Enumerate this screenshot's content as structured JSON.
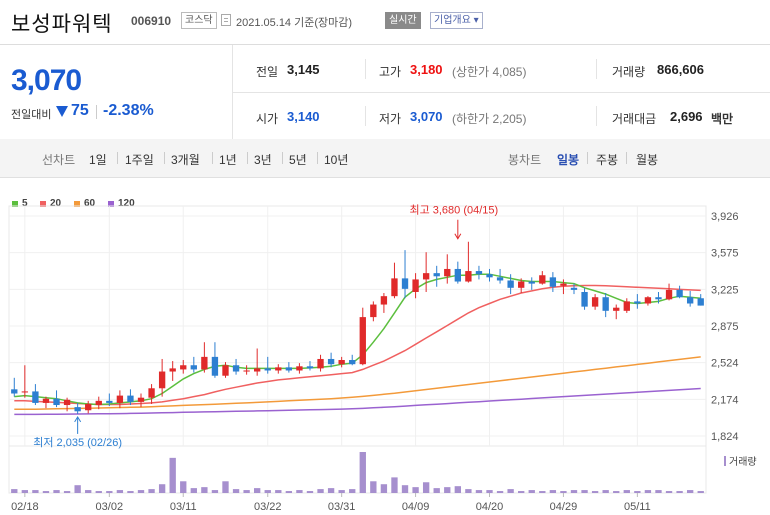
{
  "header": {
    "company_name": "보성파워텍",
    "code": "006910",
    "market_badge": "코스닥",
    "date_text": "2021.05.14 기준(장마감)",
    "realtime_label": "실시간",
    "company_info_label": "기업개요 ▾"
  },
  "price": {
    "current": "3,070",
    "change_label": "전일대비",
    "change_value": "75",
    "change_pct": "-2.38%"
  },
  "summary": {
    "prev_close_label": "전일",
    "prev_close": "3,145",
    "high_label": "고가",
    "high": "3,180",
    "upper_limit": "(상한가 4,085)",
    "volume_label": "거래량",
    "volume": "866,606",
    "open_label": "시가",
    "open": "3,140",
    "low_label": "저가",
    "low": "3,070",
    "lower_limit": "(하한가 2,205)",
    "trade_value_label": "거래대금",
    "trade_value": "2,696",
    "trade_value_unit": "백만"
  },
  "periods": {
    "line_chart_label": "선차트",
    "items": [
      "1일",
      "1주일",
      "3개월",
      "1년",
      "3년",
      "5년",
      "10년"
    ],
    "candle_label": "봉차트",
    "candle_items": [
      "일봉",
      "주봉",
      "월봉"
    ],
    "candle_selected": "일봉"
  },
  "colors": {
    "up": "#e02a2a",
    "down": "#2d7fd1",
    "ma5": "#5cbf3e",
    "ma20": "#f06060",
    "ma60": "#f39a3a",
    "ma120": "#9a62d0"
  },
  "chart_data": {
    "type": "candlestick",
    "legend": [
      {
        "label": "5",
        "color": "#5cbf3e"
      },
      {
        "label": "20",
        "color": "#f06060"
      },
      {
        "label": "60",
        "color": "#f39a3a"
      },
      {
        "label": "120",
        "color": "#9a62d0"
      }
    ],
    "y_ticks": [
      "3,926",
      "3,575",
      "3,225",
      "2,875",
      "2,524",
      "2,174",
      "1,824"
    ],
    "ylim": [
      1824,
      3926
    ],
    "x_ticks": [
      "02/18",
      "03/02",
      "03/11",
      "03/22",
      "03/31",
      "04/09",
      "04/20",
      "04/29",
      "05/11"
    ],
    "x_tick_index": [
      1,
      9,
      16,
      24,
      31,
      38,
      45,
      52,
      59
    ],
    "annotations": {
      "high": {
        "text": "최고 3,680 (04/15)",
        "index": 42,
        "value": 3680
      },
      "low": {
        "text": "최저 2,035 (02/26)",
        "index": 6,
        "value": 2035
      }
    },
    "volume_label": "거래량",
    "candles": [
      {
        "o": 2270,
        "h": 2380,
        "l": 2200,
        "c": 2230
      },
      {
        "o": 2240,
        "h": 2500,
        "l": 2190,
        "c": 2250
      },
      {
        "o": 2250,
        "h": 2320,
        "l": 2120,
        "c": 2140
      },
      {
        "o": 2140,
        "h": 2200,
        "l": 2090,
        "c": 2180
      },
      {
        "o": 2180,
        "h": 2260,
        "l": 2100,
        "c": 2120
      },
      {
        "o": 2120,
        "h": 2190,
        "l": 2060,
        "c": 2170
      },
      {
        "o": 2100,
        "h": 2140,
        "l": 2035,
        "c": 2060
      },
      {
        "o": 2070,
        "h": 2160,
        "l": 2040,
        "c": 2130
      },
      {
        "o": 2120,
        "h": 2200,
        "l": 2080,
        "c": 2160
      },
      {
        "o": 2160,
        "h": 2230,
        "l": 2110,
        "c": 2140
      },
      {
        "o": 2140,
        "h": 2260,
        "l": 2090,
        "c": 2210
      },
      {
        "o": 2210,
        "h": 2270,
        "l": 2120,
        "c": 2150
      },
      {
        "o": 2150,
        "h": 2230,
        "l": 2100,
        "c": 2190
      },
      {
        "o": 2190,
        "h": 2320,
        "l": 2130,
        "c": 2280
      },
      {
        "o": 2280,
        "h": 2560,
        "l": 2200,
        "c": 2440
      },
      {
        "o": 2440,
        "h": 2540,
        "l": 2350,
        "c": 2470
      },
      {
        "o": 2460,
        "h": 2550,
        "l": 2420,
        "c": 2500
      },
      {
        "o": 2500,
        "h": 2580,
        "l": 2430,
        "c": 2460
      },
      {
        "o": 2460,
        "h": 2720,
        "l": 2430,
        "c": 2580
      },
      {
        "o": 2580,
        "h": 2720,
        "l": 2380,
        "c": 2400
      },
      {
        "o": 2400,
        "h": 2530,
        "l": 2380,
        "c": 2500
      },
      {
        "o": 2500,
        "h": 2560,
        "l": 2410,
        "c": 2440
      },
      {
        "o": 2440,
        "h": 2500,
        "l": 2410,
        "c": 2450
      },
      {
        "o": 2440,
        "h": 2660,
        "l": 2400,
        "c": 2470
      },
      {
        "o": 2470,
        "h": 2580,
        "l": 2420,
        "c": 2450
      },
      {
        "o": 2450,
        "h": 2510,
        "l": 2420,
        "c": 2480
      },
      {
        "o": 2480,
        "h": 2530,
        "l": 2430,
        "c": 2450
      },
      {
        "o": 2450,
        "h": 2520,
        "l": 2420,
        "c": 2490
      },
      {
        "o": 2490,
        "h": 2540,
        "l": 2450,
        "c": 2470
      },
      {
        "o": 2470,
        "h": 2600,
        "l": 2440,
        "c": 2560
      },
      {
        "o": 2560,
        "h": 2620,
        "l": 2480,
        "c": 2510
      },
      {
        "o": 2510,
        "h": 2580,
        "l": 2480,
        "c": 2550
      },
      {
        "o": 2550,
        "h": 2600,
        "l": 2500,
        "c": 2510
      },
      {
        "o": 2510,
        "h": 3050,
        "l": 2500,
        "c": 2960
      },
      {
        "o": 2960,
        "h": 3110,
        "l": 2920,
        "c": 3080
      },
      {
        "o": 3080,
        "h": 3190,
        "l": 3000,
        "c": 3160
      },
      {
        "o": 3160,
        "h": 3480,
        "l": 3140,
        "c": 3330
      },
      {
        "o": 3330,
        "h": 3600,
        "l": 3140,
        "c": 3230
      },
      {
        "o": 3200,
        "h": 3380,
        "l": 3140,
        "c": 3320
      },
      {
        "o": 3320,
        "h": 3580,
        "l": 3200,
        "c": 3380
      },
      {
        "o": 3380,
        "h": 3450,
        "l": 3250,
        "c": 3350
      },
      {
        "o": 3350,
        "h": 3560,
        "l": 3280,
        "c": 3420
      },
      {
        "o": 3420,
        "h": 3490,
        "l": 3280,
        "c": 3300
      },
      {
        "o": 3300,
        "h": 3680,
        "l": 3290,
        "c": 3400
      },
      {
        "o": 3400,
        "h": 3450,
        "l": 3320,
        "c": 3370
      },
      {
        "o": 3370,
        "h": 3420,
        "l": 3300,
        "c": 3340
      },
      {
        "o": 3340,
        "h": 3420,
        "l": 3280,
        "c": 3310
      },
      {
        "o": 3310,
        "h": 3370,
        "l": 3180,
        "c": 3240
      },
      {
        "o": 3240,
        "h": 3330,
        "l": 3190,
        "c": 3300
      },
      {
        "o": 3300,
        "h": 3340,
        "l": 3220,
        "c": 3280
      },
      {
        "o": 3280,
        "h": 3400,
        "l": 3270,
        "c": 3360
      },
      {
        "o": 3340,
        "h": 3390,
        "l": 3200,
        "c": 3250
      },
      {
        "o": 3260,
        "h": 3320,
        "l": 3180,
        "c": 3280
      },
      {
        "o": 3240,
        "h": 3280,
        "l": 3180,
        "c": 3220
      },
      {
        "o": 3200,
        "h": 3240,
        "l": 3030,
        "c": 3060
      },
      {
        "o": 3060,
        "h": 3180,
        "l": 3030,
        "c": 3150
      },
      {
        "o": 3150,
        "h": 3190,
        "l": 2960,
        "c": 3020
      },
      {
        "o": 3020,
        "h": 3080,
        "l": 2940,
        "c": 3050
      },
      {
        "o": 3020,
        "h": 3140,
        "l": 3000,
        "c": 3110
      },
      {
        "o": 3110,
        "h": 3180,
        "l": 3040,
        "c": 3090
      },
      {
        "o": 3090,
        "h": 3160,
        "l": 3070,
        "c": 3150
      },
      {
        "o": 3150,
        "h": 3200,
        "l": 3090,
        "c": 3130
      },
      {
        "o": 3130,
        "h": 3280,
        "l": 3120,
        "c": 3220
      },
      {
        "o": 3220,
        "h": 3260,
        "l": 3140,
        "c": 3150
      },
      {
        "o": 3150,
        "h": 3210,
        "l": 3060,
        "c": 3090
      },
      {
        "o": 3140,
        "h": 3180,
        "l": 3070,
        "c": 3070
      }
    ],
    "volumes": [
      4,
      3,
      3,
      2,
      3,
      2,
      8,
      3,
      2,
      2,
      3,
      2,
      3,
      4,
      9,
      36,
      12,
      5,
      6,
      3,
      12,
      4,
      3,
      5,
      3,
      3,
      2,
      3,
      2,
      4,
      5,
      3,
      4,
      42,
      12,
      9,
      16,
      8,
      6,
      11,
      5,
      6,
      7,
      4,
      3,
      3,
      2,
      4,
      2,
      3,
      2,
      3,
      2,
      3,
      3,
      2,
      3,
      2,
      3,
      2,
      3,
      3,
      2,
      2,
      3,
      2
    ],
    "ma5": [
      2200,
      2210,
      2200,
      2190,
      2180,
      2160,
      2140,
      2130,
      2125,
      2130,
      2140,
      2150,
      2160,
      2180,
      2230,
      2300,
      2370,
      2420,
      2460,
      2490,
      2500,
      2480,
      2470,
      2470,
      2470,
      2470,
      2470,
      2470,
      2475,
      2480,
      2490,
      2510,
      2520,
      2600,
      2720,
      2850,
      3000,
      3150,
      3230,
      3290,
      3320,
      3340,
      3360,
      3360,
      3370,
      3370,
      3350,
      3330,
      3310,
      3300,
      3300,
      3300,
      3290,
      3280,
      3240,
      3210,
      3180,
      3140,
      3100,
      3090,
      3100,
      3110,
      3140,
      3160,
      3150,
      3140
    ],
    "ma20": [
      2160,
      2160,
      2155,
      2150,
      2145,
      2140,
      2135,
      2130,
      2125,
      2125,
      2125,
      2130,
      2135,
      2140,
      2150,
      2165,
      2180,
      2200,
      2220,
      2245,
      2270,
      2290,
      2310,
      2330,
      2345,
      2360,
      2370,
      2380,
      2390,
      2400,
      2410,
      2420,
      2430,
      2460,
      2500,
      2540,
      2590,
      2640,
      2700,
      2760,
      2820,
      2880,
      2940,
      3000,
      3050,
      3090,
      3130,
      3160,
      3190,
      3210,
      3230,
      3245,
      3255,
      3260,
      3262,
      3262,
      3260,
      3255,
      3250,
      3245,
      3240,
      3235,
      3230,
      3225,
      3220,
      3215
    ],
    "ma60": [
      2080,
      2080,
      2080,
      2082,
      2084,
      2086,
      2088,
      2090,
      2092,
      2094,
      2096,
      2098,
      2100,
      2104,
      2108,
      2112,
      2116,
      2120,
      2124,
      2128,
      2132,
      2136,
      2140,
      2145,
      2150,
      2155,
      2160,
      2165,
      2170,
      2175,
      2180,
      2187,
      2194,
      2202,
      2212,
      2222,
      2232,
      2244,
      2256,
      2268,
      2280,
      2292,
      2304,
      2316,
      2328,
      2340,
      2352,
      2364,
      2376,
      2388,
      2400,
      2412,
      2424,
      2436,
      2448,
      2460,
      2472,
      2484,
      2496,
      2508,
      2520,
      2532,
      2544,
      2556,
      2568,
      2580
    ],
    "ma120": [
      2030,
      2030,
      2030,
      2031,
      2032,
      2033,
      2034,
      2035,
      2036,
      2037,
      2038,
      2040,
      2042,
      2044,
      2046,
      2048,
      2050,
      2052,
      2054,
      2056,
      2058,
      2060,
      2062,
      2064,
      2066,
      2068,
      2070,
      2072,
      2074,
      2076,
      2078,
      2081,
      2084,
      2088,
      2093,
      2098,
      2104,
      2110,
      2116,
      2122,
      2128,
      2134,
      2140,
      2146,
      2152,
      2158,
      2164,
      2170,
      2176,
      2182,
      2188,
      2194,
      2200,
      2206,
      2212,
      2218,
      2224,
      2230,
      2236,
      2242,
      2248,
      2254,
      2260,
      2266,
      2272,
      2278
    ]
  }
}
